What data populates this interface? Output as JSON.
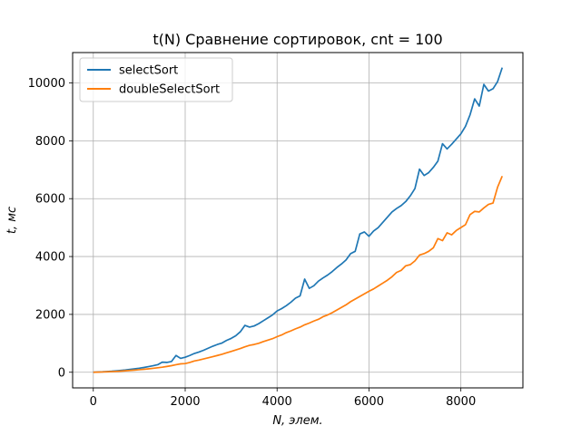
{
  "chart_data": {
    "type": "line",
    "title": "t(N) Сравнение сортировок, cnt = 100",
    "xlabel": "N, элем.",
    "ylabel": "t, мс",
    "xlim": [
      -450,
      9350
    ],
    "ylim": [
      -540,
      11050
    ],
    "grid": true,
    "legend_position": "top-left",
    "xticks": [
      0,
      2000,
      4000,
      6000,
      8000
    ],
    "yticks": [
      0,
      2000,
      4000,
      6000,
      8000,
      10000
    ],
    "series": [
      {
        "name": "selectSort",
        "color": "#1f77b4",
        "x": [
          0,
          100,
          200,
          300,
          400,
          500,
          600,
          700,
          800,
          900,
          1000,
          1100,
          1200,
          1300,
          1400,
          1500,
          1600,
          1700,
          1800,
          1900,
          2000,
          2100,
          2200,
          2300,
          2400,
          2500,
          2600,
          2700,
          2800,
          2900,
          3000,
          3100,
          3200,
          3300,
          3400,
          3500,
          3600,
          3700,
          3800,
          3900,
          4000,
          4100,
          4200,
          4300,
          4400,
          4500,
          4600,
          4700,
          4800,
          4900,
          5000,
          5100,
          5200,
          5300,
          5400,
          5500,
          5600,
          5700,
          5800,
          5900,
          6000,
          6100,
          6200,
          6300,
          6400,
          6500,
          6600,
          6700,
          6800,
          6900,
          7000,
          7100,
          7200,
          7300,
          7400,
          7500,
          7600,
          7700,
          7800,
          7900,
          8000,
          8100,
          8200,
          8300,
          8400,
          8500,
          8600,
          8700,
          8800,
          8900
        ],
        "y": [
          0,
          10,
          15,
          25,
          35,
          50,
          65,
          80,
          100,
          120,
          140,
          165,
          195,
          225,
          260,
          350,
          340,
          370,
          580,
          480,
          520,
          580,
          650,
          700,
          760,
          830,
          900,
          960,
          1010,
          1100,
          1170,
          1260,
          1400,
          1620,
          1560,
          1600,
          1680,
          1780,
          1880,
          1980,
          2120,
          2200,
          2300,
          2420,
          2560,
          2640,
          3220,
          2900,
          2990,
          3150,
          3260,
          3360,
          3480,
          3620,
          3740,
          3880,
          4100,
          4180,
          4780,
          4850,
          4700,
          4880,
          5000,
          5180,
          5360,
          5540,
          5660,
          5760,
          5900,
          6100,
          6350,
          7020,
          6800,
          6900,
          7080,
          7300,
          7900,
          7720,
          7880,
          8060,
          8240,
          8500,
          8900,
          9450,
          9200,
          9950,
          9720,
          9800,
          10050,
          10530
        ]
      },
      {
        "name": "doubleSelectSort",
        "color": "#ff7f0e",
        "x": [
          0,
          100,
          200,
          300,
          400,
          500,
          600,
          700,
          800,
          900,
          1000,
          1100,
          1200,
          1300,
          1400,
          1500,
          1600,
          1700,
          1800,
          1900,
          2000,
          2100,
          2200,
          2300,
          2400,
          2500,
          2600,
          2700,
          2800,
          2900,
          3000,
          3100,
          3200,
          3300,
          3400,
          3500,
          3600,
          3700,
          3800,
          3900,
          4000,
          4100,
          4200,
          4300,
          4400,
          4500,
          4600,
          4700,
          4800,
          4900,
          5000,
          5100,
          5200,
          5300,
          5400,
          5500,
          5600,
          5700,
          5800,
          5900,
          6000,
          6100,
          6200,
          6300,
          6400,
          6500,
          6600,
          6700,
          6800,
          6900,
          7000,
          7100,
          7200,
          7300,
          7400,
          7500,
          7600,
          7700,
          7800,
          7900,
          8000,
          8100,
          8200,
          8300,
          8400,
          8500,
          8600,
          8700,
          8800,
          8900
        ],
        "y": [
          0,
          5,
          10,
          15,
          22,
          30,
          40,
          50,
          62,
          75,
          88,
          102,
          118,
          135,
          155,
          175,
          200,
          228,
          260,
          290,
          300,
          340,
          390,
          420,
          460,
          500,
          540,
          580,
          620,
          670,
          720,
          770,
          820,
          880,
          930,
          960,
          1000,
          1060,
          1110,
          1160,
          1230,
          1290,
          1370,
          1430,
          1500,
          1560,
          1640,
          1700,
          1770,
          1830,
          1920,
          1980,
          2060,
          2150,
          2240,
          2330,
          2440,
          2530,
          2620,
          2710,
          2800,
          2880,
          2980,
          3080,
          3180,
          3300,
          3450,
          3520,
          3680,
          3720,
          3850,
          4050,
          4100,
          4180,
          4300,
          4620,
          4550,
          4820,
          4750,
          4900,
          5000,
          5100,
          5450,
          5560,
          5540,
          5680,
          5800,
          5850,
          6400,
          6780
        ]
      }
    ]
  }
}
